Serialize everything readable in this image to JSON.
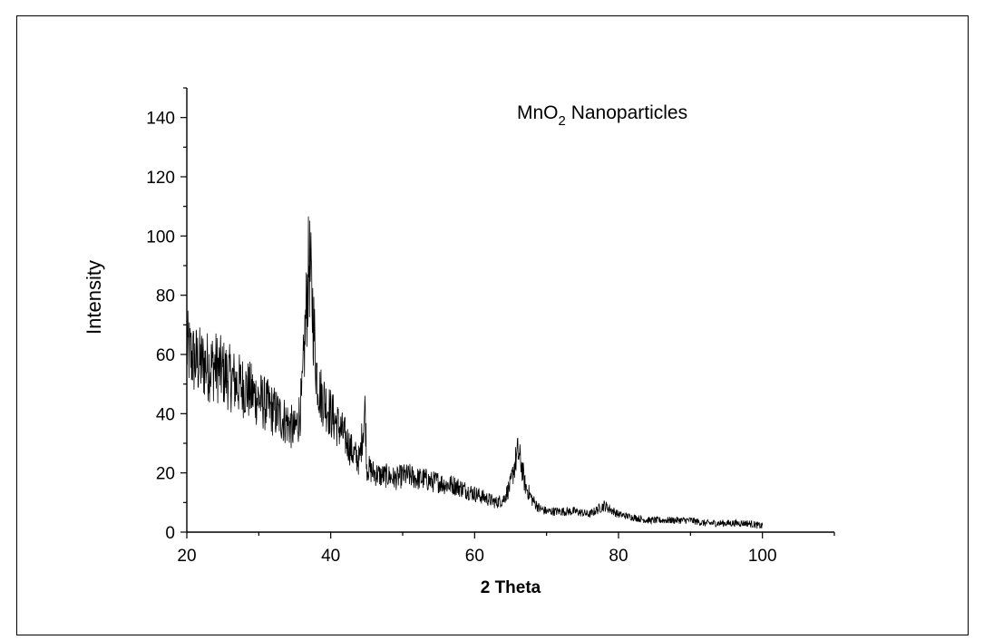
{
  "chart_data": {
    "type": "line",
    "title": "",
    "annotation": {
      "main": "MnO",
      "sub": "2",
      "rest": " Nanoparticles"
    },
    "xlabel": "2 Theta",
    "ylabel": "Intensity",
    "xlim": [
      20,
      110
    ],
    "ylim": [
      0,
      150
    ],
    "x_ticks": [
      20,
      40,
      60,
      80,
      100
    ],
    "y_ticks": [
      0,
      20,
      40,
      60,
      80,
      100,
      120,
      140
    ],
    "grid": false,
    "line_color": "#000000",
    "series": [
      {
        "x": [
          20,
          21,
          22,
          23,
          24,
          25,
          26,
          27,
          28,
          29,
          30,
          31,
          32,
          33,
          34,
          35,
          35.5,
          36,
          36.5,
          37,
          37.5,
          38,
          38.5,
          39,
          40,
          41,
          42,
          43,
          44,
          44.8,
          45,
          46,
          47,
          48,
          49,
          50,
          51,
          52,
          53,
          54,
          55,
          56,
          57,
          58,
          59,
          60,
          61,
          62,
          63,
          64,
          65,
          65.5,
          66,
          66.5,
          67,
          68,
          69,
          70,
          72,
          74,
          76,
          78,
          80,
          82,
          84,
          86,
          88,
          90,
          92,
          94,
          96,
          98,
          100
        ],
        "y": [
          62,
          58,
          57,
          56,
          56,
          54,
          52,
          50,
          49,
          47,
          45,
          43,
          41,
          39,
          37,
          34,
          38,
          45,
          70,
          92,
          75,
          55,
          47,
          45,
          40,
          36,
          32,
          27,
          24,
          42,
          22,
          20,
          19,
          19,
          18,
          19,
          19,
          18,
          18,
          17,
          17,
          16,
          16,
          15,
          14,
          13,
          12,
          11,
          10,
          11,
          16,
          22,
          27,
          23,
          16,
          11,
          8,
          7,
          7,
          7,
          6,
          9,
          6,
          5,
          4,
          4,
          4,
          4,
          3,
          3,
          3,
          3,
          2
        ]
      }
    ]
  }
}
